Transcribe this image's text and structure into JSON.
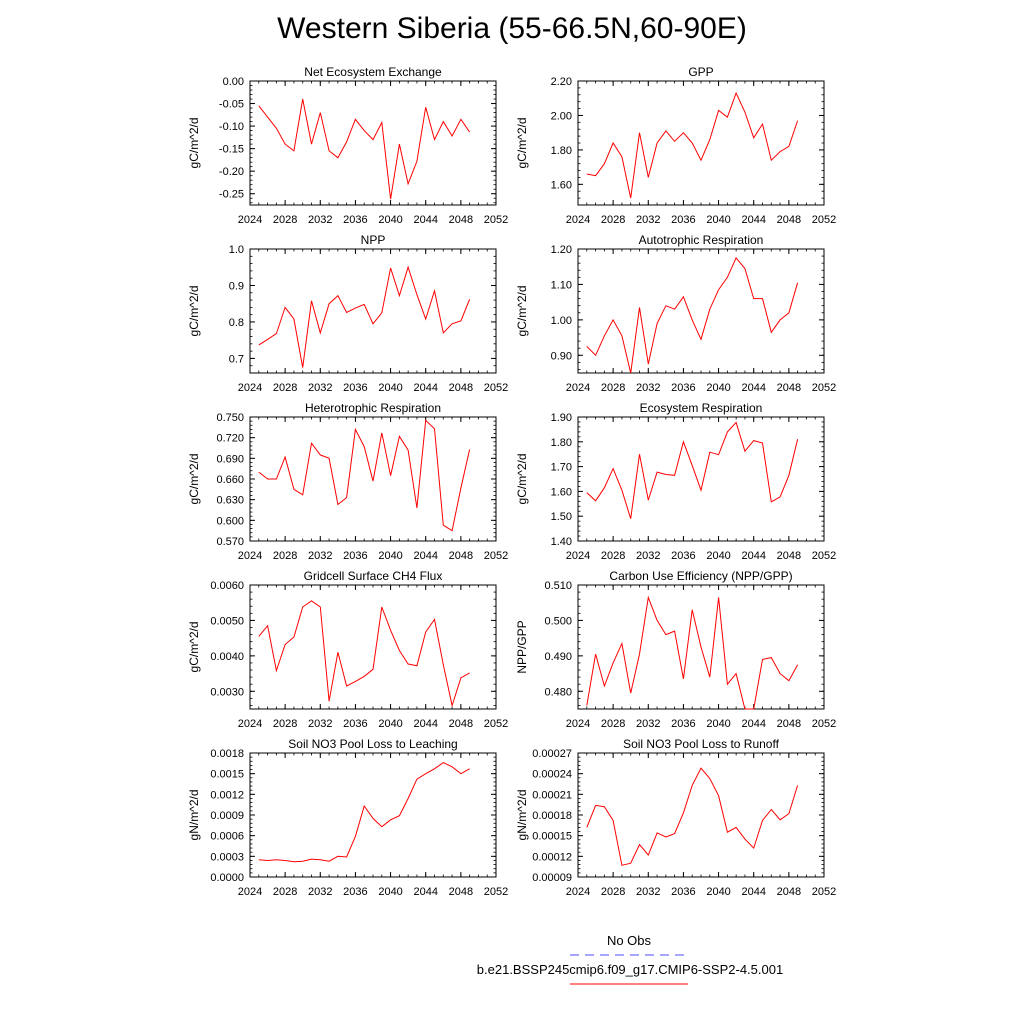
{
  "figure": {
    "title": "Western Siberia (55-66.5N,60-90E)"
  },
  "legend": {
    "entries": [
      {
        "label": "No Obs",
        "color": "#4c4cff",
        "dash": true
      },
      {
        "label": "b.e21.BSSP245cmip6.f09_g17.CMIP6-SSP2-4.5.001",
        "color": "#ff0000",
        "dash": false
      }
    ]
  },
  "chart_data": [
    {
      "type": "line",
      "title": "Net Ecosystem Exchange",
      "ylabel": "gC/m^2/d",
      "xlim": [
        2024,
        2052
      ],
      "xticks": [
        "2024",
        "2028",
        "2032",
        "2036",
        "2040",
        "2044",
        "2048",
        "2052"
      ],
      "ylim": [
        -0.275,
        0.0
      ],
      "yticks": [
        "0.00",
        "-0.05",
        "-0.10",
        "-0.15",
        "-0.20",
        "-0.25"
      ],
      "ytick_values": [
        0.0,
        -0.05,
        -0.1,
        -0.15,
        -0.2,
        -0.25
      ],
      "series": [
        {
          "color": "#ff0000",
          "x": [
            2025,
            2026,
            2027,
            2028,
            2029,
            2030,
            2031,
            2032,
            2033,
            2034,
            2035,
            2036,
            2037,
            2038,
            2039,
            2040,
            2041,
            2042,
            2043,
            2044,
            2045,
            2046,
            2047,
            2048,
            2049
          ],
          "values": [
            -0.055,
            -0.08,
            -0.105,
            -0.14,
            -0.155,
            -0.04,
            -0.14,
            -0.07,
            -0.155,
            -0.17,
            -0.135,
            -0.085,
            -0.11,
            -0.13,
            -0.092,
            -0.262,
            -0.14,
            -0.228,
            -0.178,
            -0.058,
            -0.13,
            -0.09,
            -0.122,
            -0.085,
            -0.113
          ]
        }
      ]
    },
    {
      "type": "line",
      "title": "GPP",
      "ylabel": "gC/m^2/d",
      "xlim": [
        2024,
        2052
      ],
      "xticks": [
        "2024",
        "2028",
        "2032",
        "2036",
        "2040",
        "2044",
        "2048",
        "2052"
      ],
      "ylim": [
        1.48,
        2.2
      ],
      "yticks": [
        "2.20",
        "2.00",
        "1.80",
        "1.60"
      ],
      "ytick_values": [
        2.2,
        2.0,
        1.8,
        1.6
      ],
      "series": [
        {
          "color": "#ff0000",
          "x": [
            2025,
            2026,
            2027,
            2028,
            2029,
            2030,
            2031,
            2032,
            2033,
            2034,
            2035,
            2036,
            2037,
            2038,
            2039,
            2040,
            2041,
            2042,
            2043,
            2044,
            2045,
            2046,
            2047,
            2048,
            2049
          ],
          "values": [
            1.66,
            1.65,
            1.72,
            1.84,
            1.76,
            1.52,
            1.9,
            1.64,
            1.84,
            1.91,
            1.85,
            1.9,
            1.84,
            1.74,
            1.86,
            2.03,
            1.99,
            2.13,
            2.02,
            1.87,
            1.95,
            1.74,
            1.79,
            1.82,
            1.97
          ]
        }
      ]
    },
    {
      "type": "line",
      "title": "NPP",
      "ylabel": "gC/m^2/d",
      "xlim": [
        2024,
        2052
      ],
      "xticks": [
        "2024",
        "2028",
        "2032",
        "2036",
        "2040",
        "2044",
        "2048",
        "2052"
      ],
      "ylim": [
        0.66,
        1.0
      ],
      "yticks": [
        "1.0",
        "0.9",
        "0.8",
        "0.7"
      ],
      "ytick_values": [
        1.0,
        0.9,
        0.8,
        0.7
      ],
      "series": [
        {
          "color": "#ff0000",
          "x": [
            2025,
            2026,
            2027,
            2028,
            2029,
            2030,
            2031,
            2032,
            2033,
            2034,
            2035,
            2036,
            2037,
            2038,
            2039,
            2040,
            2041,
            2042,
            2043,
            2044,
            2045,
            2046,
            2047,
            2048,
            2049
          ],
          "values": [
            0.737,
            0.752,
            0.768,
            0.84,
            0.808,
            0.675,
            0.858,
            0.77,
            0.85,
            0.872,
            0.826,
            0.838,
            0.848,
            0.795,
            0.825,
            0.948,
            0.872,
            0.95,
            0.875,
            0.808,
            0.885,
            0.77,
            0.795,
            0.803,
            0.862
          ]
        }
      ]
    },
    {
      "type": "line",
      "title": "Autotrophic Respiration",
      "ylabel": "gC/m^2/d",
      "xlim": [
        2024,
        2052
      ],
      "xticks": [
        "2024",
        "2028",
        "2032",
        "2036",
        "2040",
        "2044",
        "2048",
        "2052"
      ],
      "ylim": [
        0.85,
        1.2
      ],
      "yticks": [
        "1.20",
        "1.10",
        "1.00",
        "0.90"
      ],
      "ytick_values": [
        1.2,
        1.1,
        1.0,
        0.9
      ],
      "series": [
        {
          "color": "#ff0000",
          "x": [
            2025,
            2026,
            2027,
            2028,
            2029,
            2030,
            2031,
            2032,
            2033,
            2034,
            2035,
            2036,
            2037,
            2038,
            2039,
            2040,
            2041,
            2042,
            2043,
            2044,
            2045,
            2046,
            2047,
            2048,
            2049
          ],
          "values": [
            0.925,
            0.9,
            0.955,
            1.0,
            0.955,
            0.85,
            1.035,
            0.875,
            0.99,
            1.04,
            1.03,
            1.065,
            1.0,
            0.945,
            1.03,
            1.085,
            1.12,
            1.175,
            1.145,
            1.06,
            1.06,
            0.965,
            1.0,
            1.02,
            1.105
          ]
        }
      ]
    },
    {
      "type": "line",
      "title": "Heterotrophic Respiration",
      "ylabel": "gC/m^2/d",
      "xlim": [
        2024,
        2052
      ],
      "xticks": [
        "2024",
        "2028",
        "2032",
        "2036",
        "2040",
        "2044",
        "2048",
        "2052"
      ],
      "ylim": [
        0.57,
        0.75
      ],
      "yticks": [
        "0.750",
        "0.720",
        "0.690",
        "0.660",
        "0.630",
        "0.600",
        "0.570"
      ],
      "ytick_values": [
        0.75,
        0.72,
        0.69,
        0.66,
        0.63,
        0.6,
        0.57
      ],
      "series": [
        {
          "color": "#ff0000",
          "x": [
            2025,
            2026,
            2027,
            2028,
            2029,
            2030,
            2031,
            2032,
            2033,
            2034,
            2035,
            2036,
            2037,
            2038,
            2039,
            2040,
            2041,
            2042,
            2043,
            2044,
            2045,
            2046,
            2047,
            2048,
            2049
          ],
          "values": [
            0.67,
            0.66,
            0.66,
            0.692,
            0.645,
            0.637,
            0.712,
            0.695,
            0.69,
            0.623,
            0.633,
            0.732,
            0.707,
            0.657,
            0.727,
            0.665,
            0.722,
            0.702,
            0.618,
            0.745,
            0.733,
            0.593,
            0.585,
            0.647,
            0.703
          ]
        }
      ]
    },
    {
      "type": "line",
      "title": "Ecosystem Respiration",
      "ylabel": "gC/m^2/d",
      "xlim": [
        2024,
        2052
      ],
      "xticks": [
        "2024",
        "2028",
        "2032",
        "2036",
        "2040",
        "2044",
        "2048",
        "2052"
      ],
      "ylim": [
        1.4,
        1.9
      ],
      "yticks": [
        "1.90",
        "1.80",
        "1.70",
        "1.60",
        "1.50",
        "1.40"
      ],
      "ytick_values": [
        1.9,
        1.8,
        1.7,
        1.6,
        1.5,
        1.4
      ],
      "series": [
        {
          "color": "#ff0000",
          "x": [
            2025,
            2026,
            2027,
            2028,
            2029,
            2030,
            2031,
            2032,
            2033,
            2034,
            2035,
            2036,
            2037,
            2038,
            2039,
            2040,
            2041,
            2042,
            2043,
            2044,
            2045,
            2046,
            2047,
            2048,
            2049
          ],
          "values": [
            1.595,
            1.562,
            1.615,
            1.692,
            1.605,
            1.49,
            1.75,
            1.565,
            1.678,
            1.668,
            1.665,
            1.8,
            1.705,
            1.605,
            1.758,
            1.748,
            1.84,
            1.878,
            1.762,
            1.805,
            1.795,
            1.558,
            1.578,
            1.665,
            1.81
          ]
        }
      ]
    },
    {
      "type": "line",
      "title": "Gridcell Surface CH4 Flux",
      "ylabel": "gC/m^2/d",
      "xlim": [
        2024,
        2052
      ],
      "xticks": [
        "2024",
        "2028",
        "2032",
        "2036",
        "2040",
        "2044",
        "2048",
        "2052"
      ],
      "ylim": [
        0.0025,
        0.006
      ],
      "yticks": [
        "0.0060",
        "0.0050",
        "0.0040",
        "0.0030"
      ],
      "ytick_values": [
        0.006,
        0.005,
        0.004,
        0.003
      ],
      "series": [
        {
          "color": "#ff0000",
          "x": [
            2025,
            2026,
            2027,
            2028,
            2029,
            2030,
            2031,
            2032,
            2033,
            2034,
            2035,
            2036,
            2037,
            2038,
            2039,
            2040,
            2041,
            2042,
            2043,
            2044,
            2045,
            2046,
            2047,
            2048,
            2049
          ],
          "values": [
            0.00455,
            0.00485,
            0.00358,
            0.00432,
            0.00453,
            0.00538,
            0.00555,
            0.00538,
            0.00272,
            0.0041,
            0.00315,
            0.00328,
            0.00342,
            0.00362,
            0.00538,
            0.00472,
            0.00415,
            0.00377,
            0.00372,
            0.00467,
            0.00503,
            0.00375,
            0.0026,
            0.00338,
            0.00352
          ]
        }
      ]
    },
    {
      "type": "line",
      "title": "Carbon Use Efficiency (NPP/GPP)",
      "ylabel": "NPP/GPP",
      "xlim": [
        2024,
        2052
      ],
      "xticks": [
        "2024",
        "2028",
        "2032",
        "2036",
        "2040",
        "2044",
        "2048",
        "2052"
      ],
      "ylim": [
        0.475,
        0.51
      ],
      "yticks": [
        "0.510",
        "0.500",
        "0.490",
        "0.480"
      ],
      "ytick_values": [
        0.51,
        0.5,
        0.49,
        0.48
      ],
      "series": [
        {
          "color": "#ff0000",
          "x": [
            2025,
            2026,
            2027,
            2028,
            2029,
            2030,
            2031,
            2032,
            2033,
            2034,
            2035,
            2036,
            2037,
            2038,
            2039,
            2040,
            2041,
            2042,
            2043,
            2044,
            2045,
            2046,
            2047,
            2048,
            2049
          ],
          "values": [
            0.476,
            0.4905,
            0.4815,
            0.488,
            0.4935,
            0.4795,
            0.4905,
            0.5065,
            0.5,
            0.496,
            0.497,
            0.4835,
            0.503,
            0.4925,
            0.484,
            0.5065,
            0.482,
            0.485,
            0.475,
            0.475,
            0.489,
            0.4895,
            0.485,
            0.483,
            0.4875
          ]
        }
      ]
    },
    {
      "type": "line",
      "title": "Soil NO3 Pool Loss to Leaching",
      "ylabel": "gN/m^2/d",
      "xlim": [
        2024,
        2052
      ],
      "xticks": [
        "2024",
        "2028",
        "2032",
        "2036",
        "2040",
        "2044",
        "2048",
        "2052"
      ],
      "ylim": [
        0.0,
        0.0018
      ],
      "yticks": [
        "0.0018",
        "0.0015",
        "0.0012",
        "0.0009",
        "0.0006",
        "0.0003",
        "0.0000"
      ],
      "ytick_values": [
        0.0018,
        0.0015,
        0.0012,
        0.0009,
        0.0006,
        0.0003,
        0.0
      ],
      "series": [
        {
          "color": "#ff0000",
          "x": [
            2025,
            2026,
            2027,
            2028,
            2029,
            2030,
            2031,
            2032,
            2033,
            2034,
            2035,
            2036,
            2037,
            2038,
            2039,
            2040,
            2041,
            2042,
            2043,
            2044,
            2045,
            2046,
            2047,
            2048,
            2049
          ],
          "values": [
            0.00025,
            0.00024,
            0.00025,
            0.00024,
            0.00022,
            0.00023,
            0.00026,
            0.00025,
            0.00023,
            0.0003,
            0.00029,
            0.00059,
            0.00103,
            0.00085,
            0.00073,
            0.00083,
            0.00089,
            0.00114,
            0.00142,
            0.0015,
            0.00157,
            0.00166,
            0.0016,
            0.0015,
            0.00157
          ]
        }
      ]
    },
    {
      "type": "line",
      "title": "Soil NO3 Pool Loss to Runoff",
      "ylabel": "gN/m^2/d",
      "xlim": [
        2024,
        2052
      ],
      "xticks": [
        "2024",
        "2028",
        "2032",
        "2036",
        "2040",
        "2044",
        "2048",
        "2052"
      ],
      "ylim": [
        9e-05,
        0.00027
      ],
      "yticks": [
        "0.00027",
        "0.00024",
        "0.00021",
        "0.00018",
        "0.00015",
        "0.00012",
        "0.00009"
      ],
      "ytick_values": [
        0.00027,
        0.00024,
        0.00021,
        0.00018,
        0.00015,
        0.00012,
        9e-05
      ],
      "series": [
        {
          "color": "#ff0000",
          "x": [
            2025,
            2026,
            2027,
            2028,
            2029,
            2030,
            2031,
            2032,
            2033,
            2034,
            2035,
            2036,
            2037,
            2038,
            2039,
            2040,
            2041,
            2042,
            2043,
            2044,
            2045,
            2046,
            2047,
            2048,
            2049
          ],
          "values": [
            0.000162,
            0.000194,
            0.000192,
            0.000172,
            0.000107,
            0.00011,
            0.000137,
            0.000122,
            0.000154,
            0.000148,
            0.000153,
            0.000183,
            0.000223,
            0.000248,
            0.000233,
            0.000208,
            0.000155,
            0.000162,
            0.000145,
            0.000132,
            0.000172,
            0.000188,
            0.000173,
            0.000182,
            0.000223
          ]
        }
      ]
    }
  ]
}
